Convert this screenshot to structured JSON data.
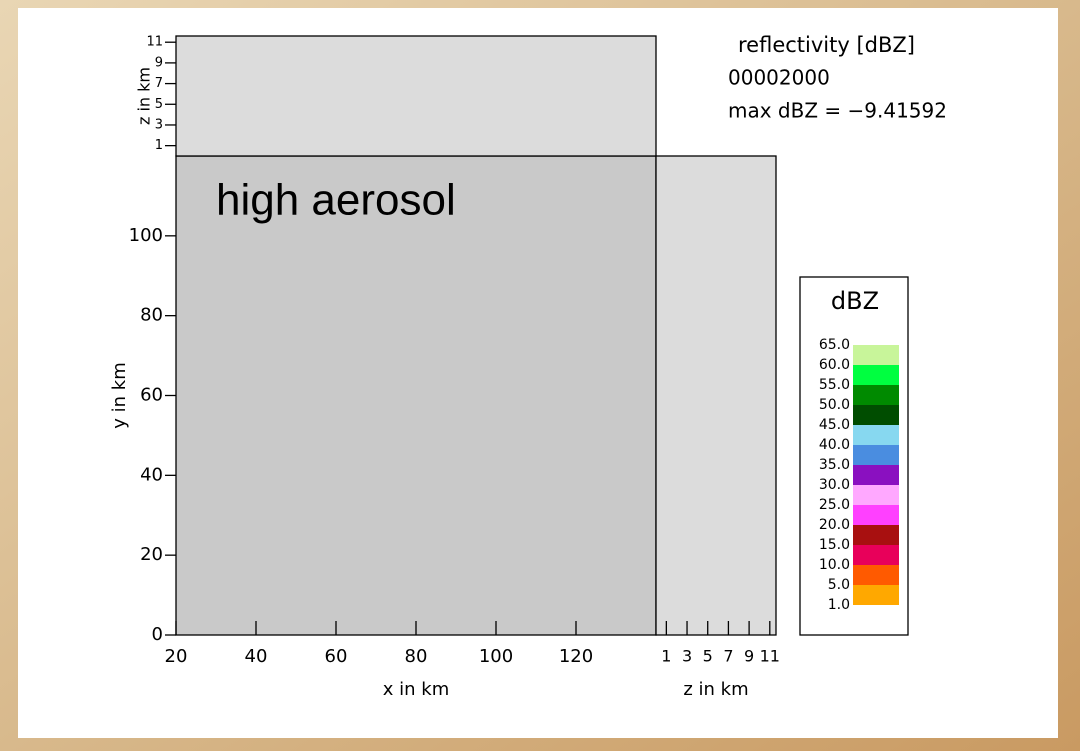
{
  "info": {
    "title": "reflectivity [dBZ]",
    "time": "00002000",
    "max": "max dBZ = −9.41592"
  },
  "chart_data": [
    {
      "type": "panel",
      "annotation": "high aerosol",
      "xlabel": "x in km",
      "ylabel": "y in km",
      "xlim": [
        20,
        140
      ],
      "ylim": [
        0,
        120
      ],
      "xticks": [
        20,
        40,
        60,
        80,
        100,
        120
      ],
      "yticks": [
        0,
        20,
        40,
        60,
        80,
        100
      ],
      "color": "#c9c9c9"
    },
    {
      "type": "panel",
      "ylabel": "z in km",
      "xlim": [
        20,
        140
      ],
      "ylim": [
        0,
        11.6
      ],
      "yticks": [
        1,
        3,
        5,
        7,
        9,
        11
      ],
      "color": "#dcdcdc"
    },
    {
      "type": "panel",
      "xlabel": "z in km",
      "xlim": [
        0,
        11.6
      ],
      "ylim": [
        0,
        120
      ],
      "xticks": [
        1,
        3,
        5,
        7,
        9,
        11
      ],
      "color": "#dcdcdc"
    },
    {
      "type": "colorbar",
      "title": "dBZ",
      "bins": [
        {
          "value": 65,
          "label": "65.0"
        },
        {
          "value": 60,
          "label": "60.0"
        },
        {
          "value": 55,
          "label": "55.0"
        },
        {
          "value": 50,
          "label": "50.0"
        },
        {
          "value": 45,
          "label": "45.0"
        },
        {
          "value": 40,
          "label": "40.0"
        },
        {
          "value": 35,
          "label": "35.0"
        },
        {
          "value": 30,
          "label": "30.0"
        },
        {
          "value": 25,
          "label": "25.0"
        },
        {
          "value": 20,
          "label": "20.0"
        },
        {
          "value": 15,
          "label": "15.0"
        },
        {
          "value": 10,
          "label": "10.0"
        },
        {
          "value": 5,
          "label": "5.0"
        },
        {
          "value": 1,
          "label": "1.0"
        }
      ],
      "colors": [
        "#c8f59a",
        "#00ff40",
        "#008a00",
        "#004d00",
        "#87d8f0",
        "#4a8de0",
        "#8a10c0",
        "#ffa8ff",
        "#ff40ff",
        "#a81010",
        "#e8005a",
        "#ff5a00",
        "#ffa800"
      ]
    }
  ]
}
